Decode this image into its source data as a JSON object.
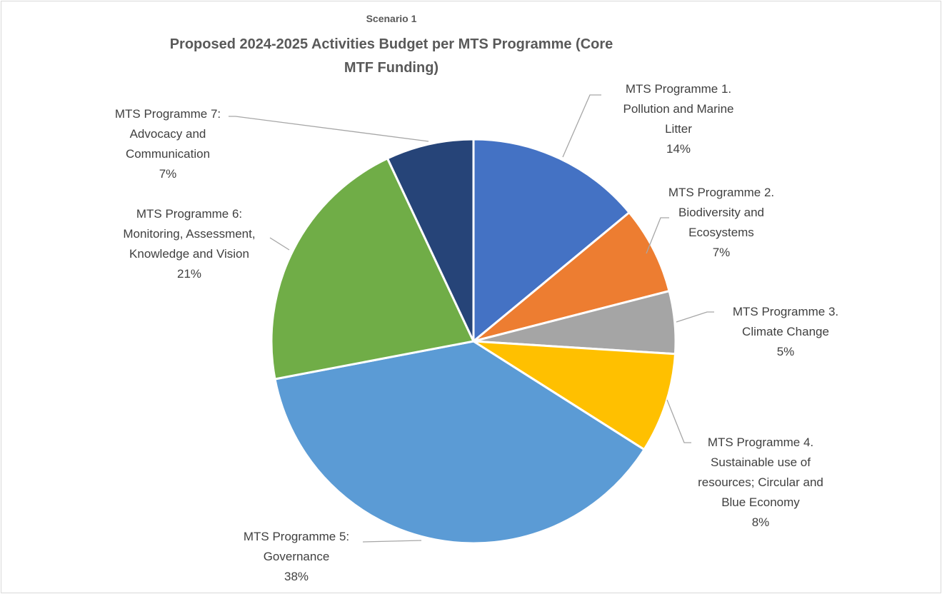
{
  "chart_data": {
    "type": "pie",
    "subtitle": "Scenario 1",
    "title": "Proposed 2024-2025 Activities Budget per MTS Programme (Core MTF Funding)",
    "categories": [
      "MTS Programme 1. Pollution and Marine Litter",
      "MTS Programme 2. Biodiversity and Ecosystems",
      "MTS Programme 3. Climate Change",
      "MTS Programme 4. Sustainable use of resources; Circular and Blue Economy",
      "MTS Programme 5: Governance",
      "MTS Programme 6: Monitoring, Assessment, Knowledge and Vision",
      "MTS Programme 7: Advocacy and Communication"
    ],
    "values": [
      14,
      7,
      5,
      8,
      38,
      21,
      7
    ],
    "value_labels": [
      "14%",
      "7%",
      "5%",
      "8%",
      "38%",
      "21%",
      "7%"
    ],
    "colors": [
      "#4472c4",
      "#ed7d31",
      "#a5a5a5",
      "#ffc000",
      "#5b9bd5",
      "#70ad47",
      "#264478"
    ]
  }
}
